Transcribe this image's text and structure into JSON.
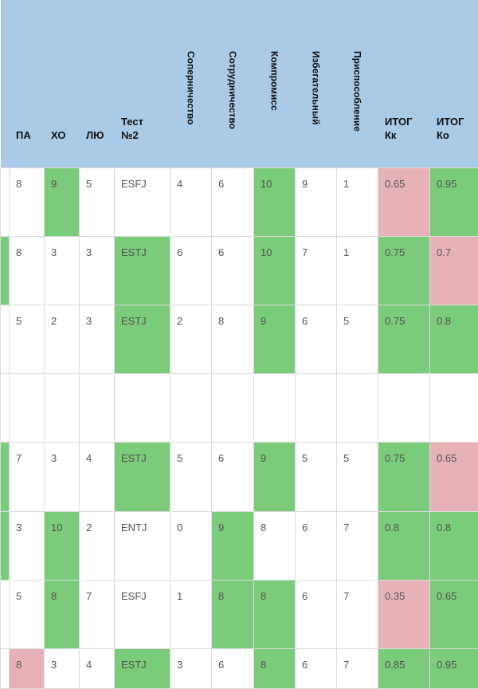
{
  "columns": [
    {
      "label": "",
      "vertical": false
    },
    {
      "label": "ПА",
      "vertical": false
    },
    {
      "label": "ХО",
      "vertical": false
    },
    {
      "label": "ЛЮ",
      "vertical": false
    },
    {
      "label": "Тест\n№2",
      "vertical": false
    },
    {
      "label": "Соперничество",
      "vertical": true
    },
    {
      "label": "Сотрудничество",
      "vertical": true
    },
    {
      "label": "Компромисс",
      "vertical": true
    },
    {
      "label": "Избегательный",
      "vertical": true
    },
    {
      "label": "Приспособление",
      "vertical": true
    },
    {
      "label": "ИТОГ\nКк",
      "vertical": false
    },
    {
      "label": "ИТОГ\nКо",
      "vertical": false
    }
  ],
  "colors": {
    "header": "#a9cbe5",
    "green": "#7acb7a",
    "red": "#e7b2b7"
  },
  "rows": [
    [
      {
        "v": "",
        "c": ""
      },
      {
        "v": "8",
        "c": ""
      },
      {
        "v": "9",
        "c": "g"
      },
      {
        "v": "5",
        "c": ""
      },
      {
        "v": "ESFJ",
        "c": ""
      },
      {
        "v": "4",
        "c": ""
      },
      {
        "v": "6",
        "c": ""
      },
      {
        "v": "10",
        "c": "g"
      },
      {
        "v": "9",
        "c": ""
      },
      {
        "v": "1",
        "c": ""
      },
      {
        "v": "0.65",
        "c": "r"
      },
      {
        "v": "0.95",
        "c": "g"
      }
    ],
    [
      {
        "v": "",
        "c": "g"
      },
      {
        "v": "8",
        "c": ""
      },
      {
        "v": "3",
        "c": ""
      },
      {
        "v": "3",
        "c": ""
      },
      {
        "v": "ESTJ",
        "c": "g"
      },
      {
        "v": "6",
        "c": ""
      },
      {
        "v": "6",
        "c": ""
      },
      {
        "v": "10",
        "c": "g"
      },
      {
        "v": "7",
        "c": ""
      },
      {
        "v": "1",
        "c": ""
      },
      {
        "v": "0.75",
        "c": "g"
      },
      {
        "v": "0.7",
        "c": "r"
      }
    ],
    [
      {
        "v": "",
        "c": ""
      },
      {
        "v": "5",
        "c": ""
      },
      {
        "v": "2",
        "c": ""
      },
      {
        "v": "3",
        "c": ""
      },
      {
        "v": "ESTJ",
        "c": "g"
      },
      {
        "v": "2",
        "c": ""
      },
      {
        "v": "8",
        "c": ""
      },
      {
        "v": "9",
        "c": "g"
      },
      {
        "v": "6",
        "c": ""
      },
      {
        "v": "5",
        "c": ""
      },
      {
        "v": "0.75",
        "c": "g"
      },
      {
        "v": "0.8",
        "c": "g"
      }
    ],
    [
      {
        "v": "",
        "c": ""
      },
      {
        "v": "",
        "c": ""
      },
      {
        "v": "",
        "c": ""
      },
      {
        "v": "",
        "c": ""
      },
      {
        "v": "",
        "c": ""
      },
      {
        "v": "",
        "c": ""
      },
      {
        "v": "",
        "c": ""
      },
      {
        "v": "",
        "c": ""
      },
      {
        "v": "",
        "c": ""
      },
      {
        "v": "",
        "c": ""
      },
      {
        "v": "",
        "c": ""
      },
      {
        "v": "",
        "c": ""
      }
    ],
    [
      {
        "v": "",
        "c": "g"
      },
      {
        "v": "7",
        "c": ""
      },
      {
        "v": "3",
        "c": ""
      },
      {
        "v": "4",
        "c": ""
      },
      {
        "v": "ESTJ",
        "c": "g"
      },
      {
        "v": "5",
        "c": ""
      },
      {
        "v": "6",
        "c": ""
      },
      {
        "v": "9",
        "c": "g"
      },
      {
        "v": "5",
        "c": ""
      },
      {
        "v": "5",
        "c": ""
      },
      {
        "v": "0.75",
        "c": "g"
      },
      {
        "v": "0.65",
        "c": "r"
      }
    ],
    [
      {
        "v": "",
        "c": "g"
      },
      {
        "v": "3",
        "c": ""
      },
      {
        "v": "10",
        "c": "g"
      },
      {
        "v": "2",
        "c": ""
      },
      {
        "v": "ENTJ",
        "c": ""
      },
      {
        "v": "0",
        "c": ""
      },
      {
        "v": "9",
        "c": "g"
      },
      {
        "v": "8",
        "c": ""
      },
      {
        "v": "6",
        "c": ""
      },
      {
        "v": "7",
        "c": ""
      },
      {
        "v": "0.8",
        "c": "g"
      },
      {
        "v": "0.8",
        "c": "g"
      }
    ],
    [
      {
        "v": "",
        "c": ""
      },
      {
        "v": "5",
        "c": ""
      },
      {
        "v": "8",
        "c": "g"
      },
      {
        "v": "7",
        "c": ""
      },
      {
        "v": "ESFJ",
        "c": ""
      },
      {
        "v": "1",
        "c": ""
      },
      {
        "v": "8",
        "c": "g"
      },
      {
        "v": "8",
        "c": "g"
      },
      {
        "v": "6",
        "c": ""
      },
      {
        "v": "7",
        "c": ""
      },
      {
        "v": "0.35",
        "c": "r"
      },
      {
        "v": "0.65",
        "c": "g"
      }
    ],
    [
      {
        "v": "",
        "c": ""
      },
      {
        "v": "8",
        "c": "r"
      },
      {
        "v": "3",
        "c": ""
      },
      {
        "v": "4",
        "c": ""
      },
      {
        "v": "ESTJ",
        "c": "g"
      },
      {
        "v": "3",
        "c": ""
      },
      {
        "v": "6",
        "c": ""
      },
      {
        "v": "8",
        "c": "g"
      },
      {
        "v": "6",
        "c": ""
      },
      {
        "v": "7",
        "c": ""
      },
      {
        "v": "0.85",
        "c": "g"
      },
      {
        "v": "0.95",
        "c": "g"
      }
    ]
  ]
}
